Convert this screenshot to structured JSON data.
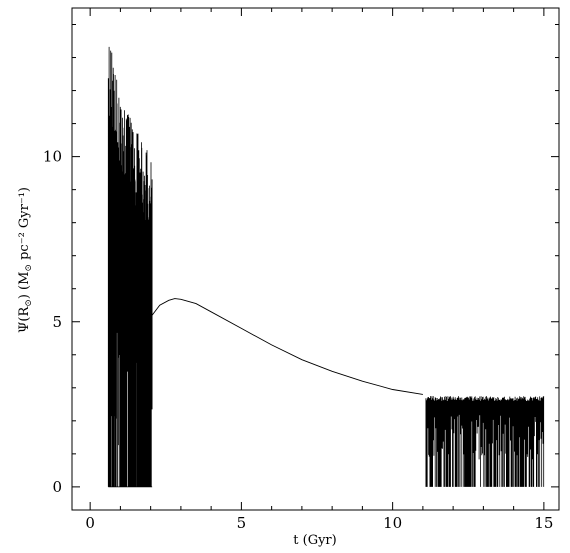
{
  "chart_data": {
    "type": "line",
    "title": "",
    "xlabel": "t  (Gyr)",
    "ylabel": {
      "main": "Ψ(R",
      "sub1": "⊙",
      "middle": ")  (M",
      "sub2": "⊙",
      "end": " pc⁻² Gyr⁻¹)"
    },
    "xlim": [
      -0.6,
      15.5
    ],
    "ylim": [
      -0.7,
      14.5
    ],
    "x_ticks": [
      0,
      5,
      10,
      15
    ],
    "x_tick_labels": [
      "0",
      "5",
      "10",
      "15"
    ],
    "y_ticks": [
      0,
      5,
      10
    ],
    "y_tick_labels": [
      "0",
      "5",
      "10"
    ],
    "grid": false,
    "legend": "none",
    "color": "#000000",
    "series": [
      {
        "segment": "halo-thick-disk-burst",
        "x_range": [
          0.6,
          2.05
        ],
        "envelope_x": [
          0.6,
          0.7,
          0.8,
          1.0,
          1.2,
          1.5,
          1.8,
          2.0
        ],
        "envelope_upper": [
          13.9,
          13.3,
          12.7,
          12.0,
          11.4,
          10.9,
          10.5,
          10.3
        ],
        "floor": 0
      },
      {
        "segment": "smooth-disk",
        "x": [
          2.05,
          2.3,
          2.6,
          2.8,
          3.0,
          3.5,
          4.0,
          5.0,
          6.0,
          7.0,
          8.0,
          9.0,
          10.0,
          11.0
        ],
        "y": [
          5.2,
          5.5,
          5.65,
          5.7,
          5.68,
          5.55,
          5.3,
          4.8,
          4.3,
          3.85,
          3.5,
          3.2,
          2.95,
          2.8
        ]
      },
      {
        "segment": "late-oscillating",
        "x_range": [
          11.1,
          15.0
        ],
        "upper": 2.75,
        "floor": 0
      }
    ]
  }
}
